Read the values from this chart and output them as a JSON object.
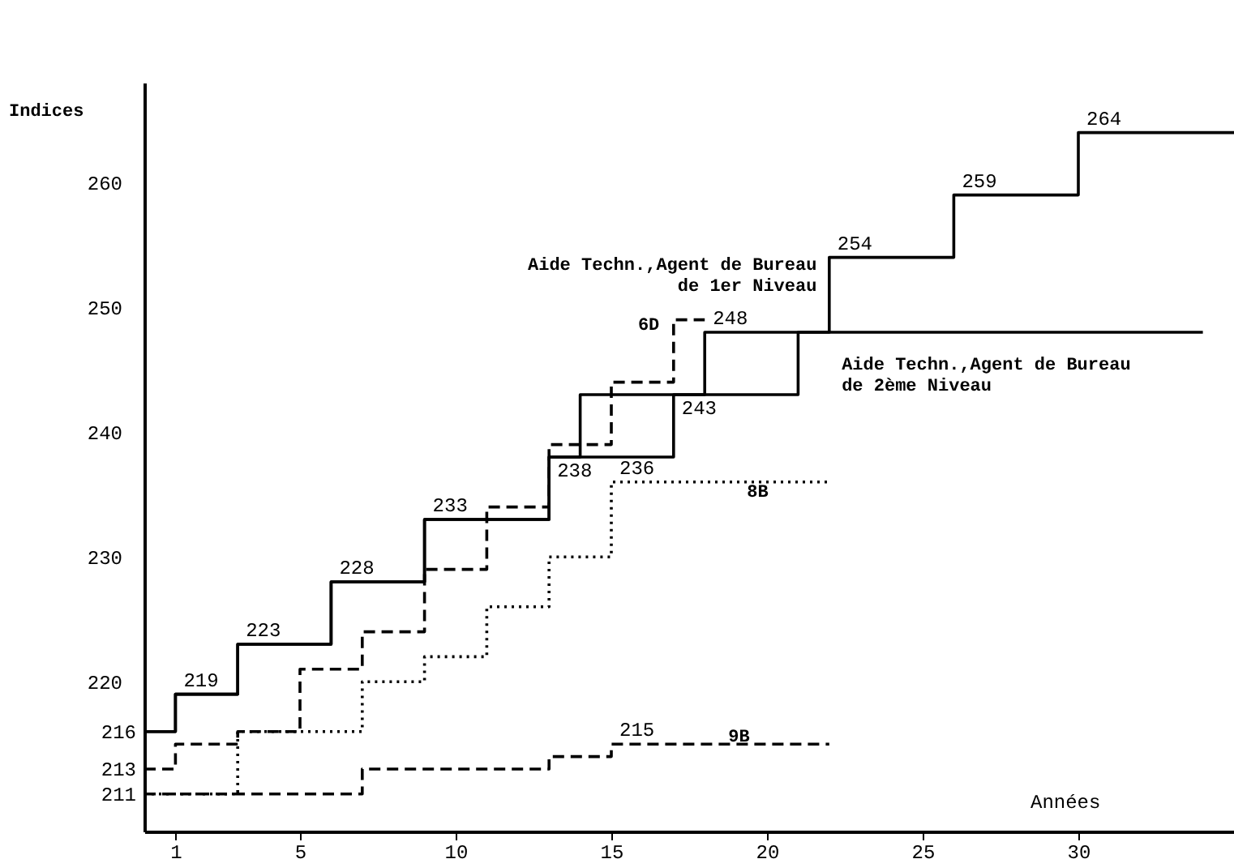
{
  "chart_data": {
    "type": "step",
    "xlabel": "Années",
    "ylabel": "Indices",
    "xlim": [
      0,
      35
    ],
    "xticks": [
      1,
      5,
      10,
      15,
      20,
      25,
      30
    ],
    "ylim": [
      208,
      268
    ],
    "yticks": [
      220,
      230,
      240,
      250,
      260
    ],
    "grid": false,
    "legend": false,
    "series": [
      {
        "name": "Aide Techn.,Agent de Bureau\nde 1er Niveau",
        "color": "#000000",
        "line_style": "solid",
        "x": [
          0,
          1,
          3,
          6,
          9,
          13,
          17,
          21,
          22,
          26,
          30,
          35
        ],
        "values": [
          216,
          219,
          223,
          228,
          233,
          238,
          243,
          248,
          254,
          259,
          264,
          264
        ],
        "value_labels": [
          "216",
          "219",
          "223",
          "228",
          "233",
          "238",
          "243",
          null,
          "254",
          "259",
          "264",
          null
        ]
      },
      {
        "name": "Aide Techn.,Agent de Bureau\nde 2ème Niveau",
        "color": "#000000",
        "line_style": "solid",
        "x": [
          0,
          1,
          3,
          6,
          9,
          13,
          14,
          18,
          34
        ],
        "values": [
          216,
          219,
          223,
          228,
          233,
          238,
          243,
          248,
          248
        ],
        "value_labels": [
          null,
          null,
          null,
          null,
          null,
          null,
          null,
          "248",
          null
        ]
      },
      {
        "name": "6D",
        "color": "#000000",
        "line_style": "dashed",
        "x": [
          0,
          1,
          3,
          5,
          7,
          9,
          11,
          13,
          15,
          17,
          18
        ],
        "values": [
          213,
          215,
          216,
          221,
          224,
          229,
          234,
          239,
          244,
          249,
          249
        ],
        "value_labels": [
          "213",
          null,
          null,
          null,
          null,
          null,
          null,
          null,
          null,
          null,
          null
        ]
      },
      {
        "name": "8B",
        "color": "#000000",
        "line_style": "dotted",
        "x": [
          0,
          3,
          7,
          9,
          11,
          13,
          15,
          22
        ],
        "values": [
          211,
          216,
          220,
          222,
          226,
          230,
          236,
          236
        ],
        "value_labels": [
          "211",
          null,
          null,
          null,
          null,
          null,
          "236",
          null
        ]
      },
      {
        "name": "9B",
        "color": "#000000",
        "line_style": "dashed",
        "x": [
          0,
          7,
          13,
          15,
          22
        ],
        "values": [
          211,
          213,
          214,
          215,
          215
        ],
        "value_labels": [
          null,
          null,
          null,
          "215",
          null
        ]
      }
    ]
  }
}
